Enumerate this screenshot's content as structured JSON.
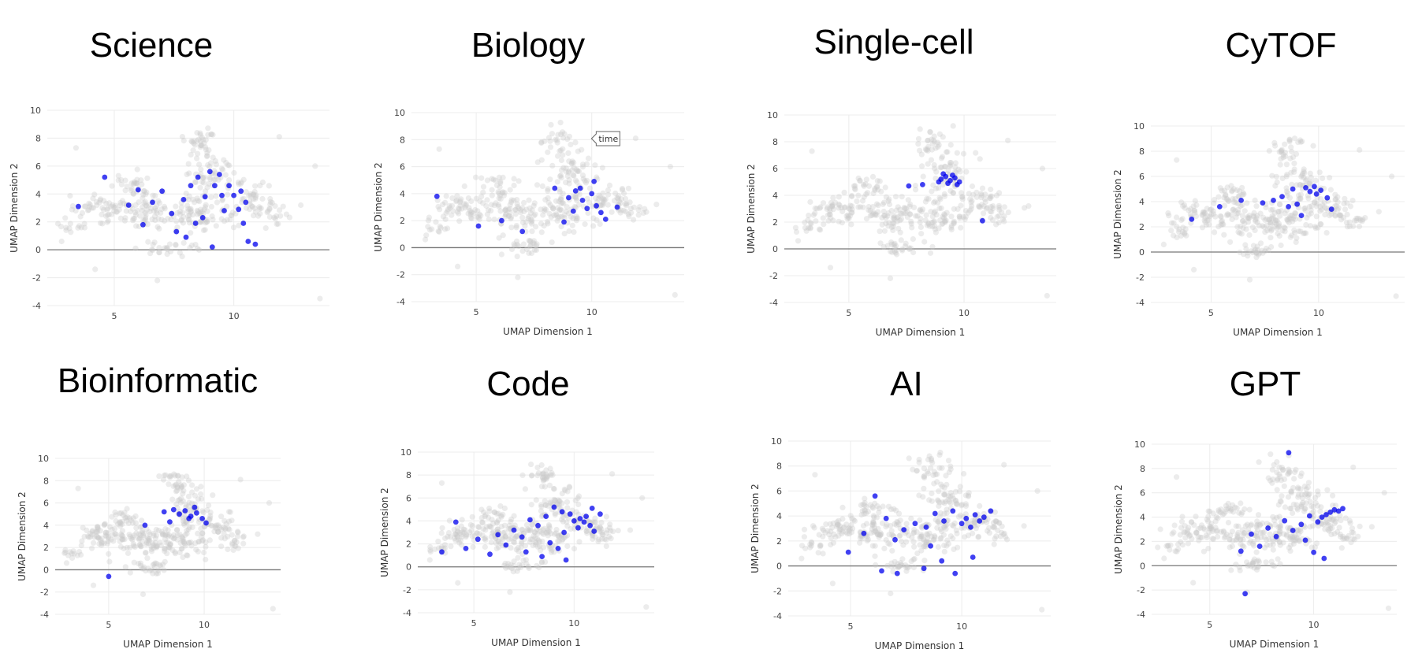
{
  "chart_data": [
    {
      "type": "scatter",
      "title": "Science",
      "xlabel": "",
      "ylabel": "UMAP Dimension 2",
      "xlim": [
        2.2,
        14
      ],
      "ylim": [
        -4,
        10
      ],
      "xticks": [
        5,
        10
      ],
      "yticks": [
        -4,
        -2,
        0,
        2,
        4,
        6,
        8,
        10
      ],
      "grid": true,
      "highlight_color": "#0000ee",
      "background_color": "#c8c8c8",
      "highlight": [
        [
          6,
          4.3
        ],
        [
          6.6,
          3.4
        ],
        [
          7,
          4.2
        ],
        [
          7.4,
          2.6
        ],
        [
          7.9,
          3.6
        ],
        [
          8.2,
          4.6
        ],
        [
          8.5,
          5.2
        ],
        [
          8.8,
          3.8
        ],
        [
          9,
          5.6
        ],
        [
          9.2,
          4.6
        ],
        [
          9.4,
          5.4
        ],
        [
          9.5,
          3.9
        ],
        [
          9.6,
          2.8
        ],
        [
          9.8,
          4.6
        ],
        [
          10,
          3.9
        ],
        [
          10.2,
          2.9
        ],
        [
          10.4,
          1.9
        ],
        [
          10.6,
          0.6
        ],
        [
          10.9,
          0.4
        ],
        [
          10.3,
          4.2
        ],
        [
          8.4,
          1.9
        ],
        [
          8,
          0.9
        ],
        [
          7.6,
          1.3
        ],
        [
          9.1,
          0.2
        ],
        [
          5.6,
          3.2
        ],
        [
          6.2,
          1.8
        ],
        [
          4.6,
          5.2
        ],
        [
          3.5,
          3.1
        ],
        [
          10.5,
          3.4
        ],
        [
          8.7,
          2.3
        ]
      ]
    },
    {
      "type": "scatter",
      "title": "Biology",
      "xlabel": "UMAP Dimension 1",
      "ylabel": "UMAP Dimension 2",
      "xlim": [
        2.2,
        14
      ],
      "ylim": [
        -4,
        10
      ],
      "xticks": [
        5,
        10
      ],
      "yticks": [
        -4,
        -2,
        0,
        2,
        4,
        6,
        8,
        10
      ],
      "grid": true,
      "highlight_color": "#0000ee",
      "background_color": "#c8c8c8",
      "tooltip": "time",
      "highlight": [
        [
          8.4,
          4.4
        ],
        [
          9,
          3.7
        ],
        [
          9.3,
          4.2
        ],
        [
          9.6,
          3.5
        ],
        [
          9.8,
          2.9
        ],
        [
          10,
          4
        ],
        [
          10.2,
          3.1
        ],
        [
          10.4,
          2.6
        ],
        [
          10.6,
          2.1
        ],
        [
          11.1,
          3
        ],
        [
          9.2,
          2.7
        ],
        [
          8.8,
          1.9
        ],
        [
          7,
          1.2
        ],
        [
          6.1,
          2
        ],
        [
          5.1,
          1.6
        ],
        [
          3.3,
          3.8
        ],
        [
          10.1,
          4.9
        ],
        [
          9.5,
          4.4
        ]
      ]
    },
    {
      "type": "scatter",
      "title": "Single-cell",
      "xlabel": "UMAP Dimension 1",
      "ylabel": "UMAP Dimension 2",
      "xlim": [
        2.2,
        14
      ],
      "ylim": [
        -4,
        10
      ],
      "xticks": [
        5,
        10
      ],
      "yticks": [
        -4,
        -2,
        0,
        2,
        4,
        6,
        8,
        10
      ],
      "grid": true,
      "highlight_color": "#0000ee",
      "background_color": "#c8c8c8",
      "highlight": [
        [
          9,
          5.2
        ],
        [
          9.2,
          5.4
        ],
        [
          9.4,
          5.1
        ],
        [
          9.6,
          5.3
        ],
        [
          9.3,
          4.9
        ],
        [
          9.7,
          4.8
        ],
        [
          8.9,
          5
        ],
        [
          9.5,
          5.5
        ],
        [
          8.2,
          4.8
        ],
        [
          7.6,
          4.7
        ],
        [
          10.8,
          2.1
        ],
        [
          9.1,
          5.6
        ],
        [
          9.8,
          5
        ]
      ]
    },
    {
      "type": "scatter",
      "title": "CyTOF",
      "xlabel": "UMAP Dimension 1",
      "ylabel": "UMAP Dimension 2",
      "xlim": [
        2.2,
        14
      ],
      "ylim": [
        -4,
        10
      ],
      "xticks": [
        5,
        10
      ],
      "yticks": [
        -4,
        -2,
        0,
        2,
        4,
        6,
        8,
        10
      ],
      "grid": true,
      "highlight_color": "#0000ee",
      "background_color": "#c8c8c8",
      "highlight": [
        [
          9.6,
          4.8
        ],
        [
          9.9,
          4.6
        ],
        [
          10.1,
          4.9
        ],
        [
          9.4,
          5.1
        ],
        [
          8.8,
          5
        ],
        [
          8.3,
          4.4
        ],
        [
          7.9,
          4.1
        ],
        [
          10.4,
          4.3
        ],
        [
          9,
          3.8
        ],
        [
          8.6,
          3.6
        ],
        [
          7.4,
          3.9
        ],
        [
          6.4,
          4.1
        ],
        [
          5.4,
          3.6
        ],
        [
          4.1,
          2.6
        ],
        [
          10.6,
          3.4
        ],
        [
          9.2,
          2.9
        ],
        [
          9.8,
          5.2
        ]
      ]
    },
    {
      "type": "scatter",
      "title": "Bioinformatic",
      "xlabel": "UMAP Dimension 1",
      "ylabel": "UMAP Dimension 2",
      "xlim": [
        2.2,
        14
      ],
      "ylim": [
        -4,
        10
      ],
      "xticks": [
        5,
        10
      ],
      "yticks": [
        -4,
        -2,
        0,
        2,
        4,
        6,
        8,
        10
      ],
      "grid": true,
      "highlight_color": "#0000ee",
      "background_color": "#c8c8c8",
      "highlight": [
        [
          8.7,
          5
        ],
        [
          9,
          5.3
        ],
        [
          9.3,
          4.8
        ],
        [
          9.6,
          5.1
        ],
        [
          9.2,
          4.6
        ],
        [
          8.4,
          5.4
        ],
        [
          7.9,
          5.2
        ],
        [
          9.9,
          4.6
        ],
        [
          8.2,
          4.3
        ],
        [
          6.9,
          4
        ],
        [
          10.1,
          4.2
        ],
        [
          5,
          -0.6
        ],
        [
          9.5,
          5.6
        ]
      ]
    },
    {
      "type": "scatter",
      "title": "Code",
      "xlabel": "UMAP Dimension 1",
      "ylabel": "UMAP Dimension 2",
      "xlim": [
        2.2,
        14
      ],
      "ylim": [
        -4,
        10
      ],
      "xticks": [
        5,
        10
      ],
      "yticks": [
        -4,
        -2,
        0,
        2,
        4,
        6,
        8,
        10
      ],
      "grid": true,
      "highlight_color": "#0000ee",
      "background_color": "#c8c8c8",
      "highlight": [
        [
          10,
          4
        ],
        [
          10.3,
          4.2
        ],
        [
          10.5,
          3.9
        ],
        [
          10.6,
          4.4
        ],
        [
          10.8,
          3.6
        ],
        [
          10.2,
          3.4
        ],
        [
          9.8,
          4.6
        ],
        [
          9.4,
          4.8
        ],
        [
          9,
          5.2
        ],
        [
          8.6,
          4.4
        ],
        [
          8.2,
          3.6
        ],
        [
          7.8,
          4.1
        ],
        [
          7.4,
          2.6
        ],
        [
          7,
          3.2
        ],
        [
          6.6,
          1.9
        ],
        [
          6.2,
          2.8
        ],
        [
          5.8,
          1.1
        ],
        [
          5.2,
          2.4
        ],
        [
          4.6,
          1.6
        ],
        [
          3.4,
          1.3
        ],
        [
          4.1,
          3.9
        ],
        [
          8.8,
          2.1
        ],
        [
          9.2,
          1.6
        ],
        [
          9.6,
          0.6
        ],
        [
          11,
          3.1
        ],
        [
          11.3,
          4.6
        ],
        [
          8.4,
          0.9
        ],
        [
          7.6,
          1.3
        ],
        [
          9.5,
          3
        ],
        [
          10.9,
          5.1
        ]
      ]
    },
    {
      "type": "scatter",
      "title": "AI",
      "xlabel": "UMAP Dimension 1",
      "ylabel": "UMAP Dimension 2",
      "xlim": [
        2.2,
        14
      ],
      "ylim": [
        -4,
        10
      ],
      "xticks": [
        5,
        10
      ],
      "yticks": [
        -4,
        -2,
        0,
        2,
        4,
        6,
        8,
        10
      ],
      "grid": true,
      "highlight_color": "#0000ee",
      "background_color": "#c8c8c8",
      "highlight": [
        [
          10,
          3.4
        ],
        [
          10.2,
          3.8
        ],
        [
          10.4,
          3.1
        ],
        [
          10.6,
          4.1
        ],
        [
          10.8,
          3.6
        ],
        [
          11,
          3.9
        ],
        [
          9.6,
          4.4
        ],
        [
          9.2,
          3.6
        ],
        [
          8.8,
          4.2
        ],
        [
          8.4,
          3.1
        ],
        [
          7.9,
          3.4
        ],
        [
          7.4,
          2.9
        ],
        [
          7,
          2.1
        ],
        [
          6.6,
          3.8
        ],
        [
          6.1,
          5.6
        ],
        [
          5.6,
          2.6
        ],
        [
          4.9,
          1.1
        ],
        [
          6.4,
          -0.4
        ],
        [
          7.1,
          -0.6
        ],
        [
          8.3,
          -0.2
        ],
        [
          9.1,
          0.4
        ],
        [
          9.7,
          -0.6
        ],
        [
          10.5,
          0.7
        ],
        [
          11.3,
          4.4
        ],
        [
          8.6,
          1.6
        ]
      ]
    },
    {
      "type": "scatter",
      "title": "GPT",
      "xlabel": "UMAP Dimension 1",
      "ylabel": "UMAP Dimension 2",
      "xlim": [
        2.2,
        14
      ],
      "ylim": [
        -4,
        10
      ],
      "xticks": [
        5,
        10
      ],
      "yticks": [
        -4,
        -2,
        0,
        2,
        4,
        6,
        8,
        10
      ],
      "grid": true,
      "highlight_color": "#0000ee",
      "background_color": "#c8c8c8",
      "highlight": [
        [
          10.8,
          4.4
        ],
        [
          11,
          4.6
        ],
        [
          11.2,
          4.5
        ],
        [
          10.6,
          4.2
        ],
        [
          10.4,
          4
        ],
        [
          10.2,
          3.6
        ],
        [
          9.8,
          4.1
        ],
        [
          9.4,
          3.4
        ],
        [
          9,
          2.9
        ],
        [
          8.6,
          3.7
        ],
        [
          8.2,
          2.4
        ],
        [
          7.8,
          3.1
        ],
        [
          7.4,
          1.6
        ],
        [
          7,
          2.6
        ],
        [
          6.5,
          1.2
        ],
        [
          6.7,
          -2.3
        ],
        [
          10.5,
          0.6
        ],
        [
          8.8,
          9.3
        ],
        [
          9.6,
          2.1
        ],
        [
          10,
          1.1
        ],
        [
          11.4,
          4.7
        ]
      ]
    }
  ]
}
